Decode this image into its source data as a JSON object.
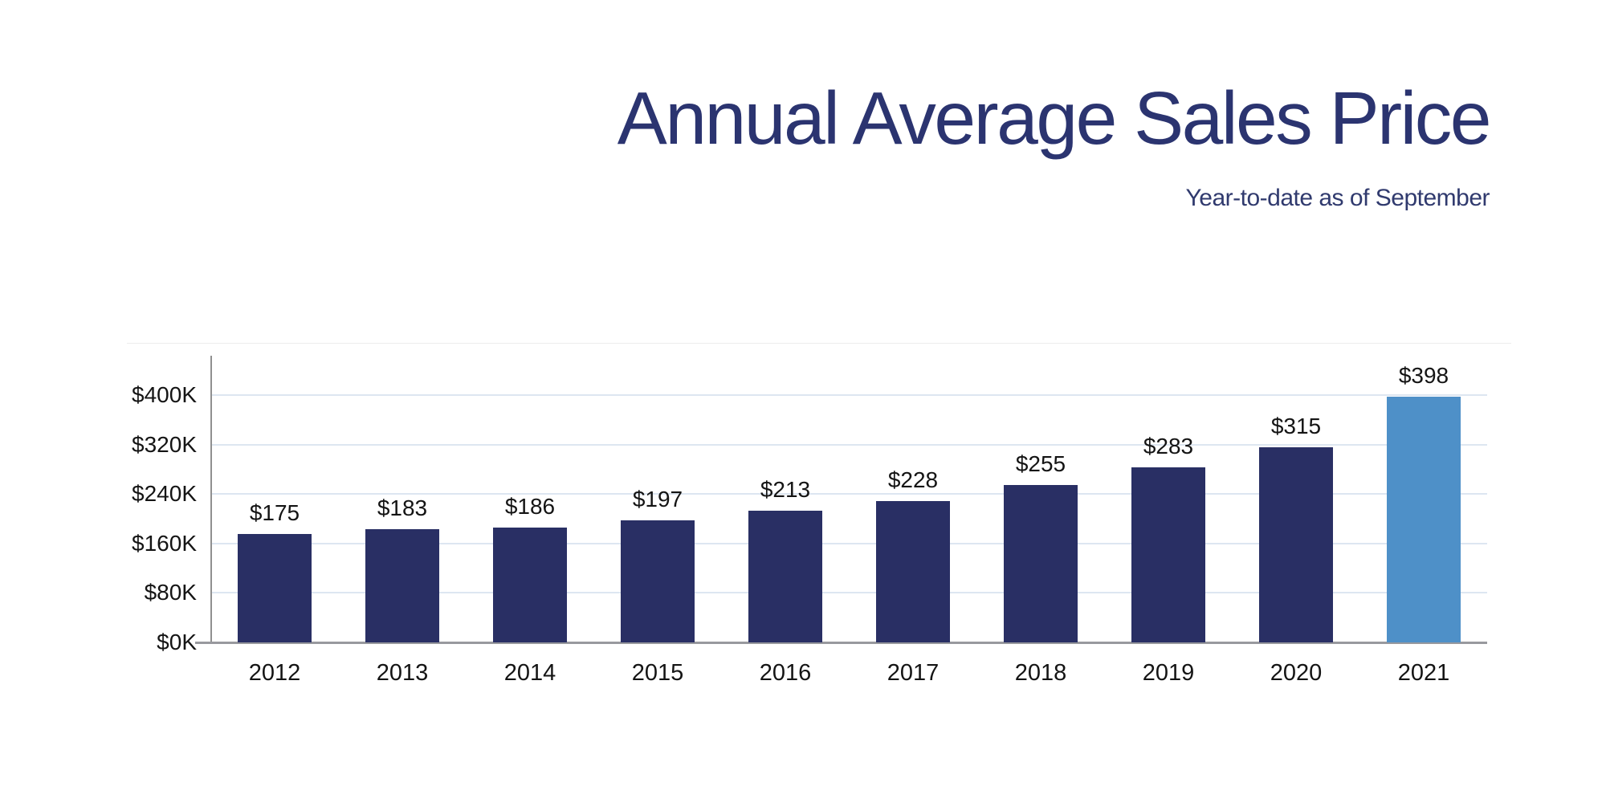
{
  "header": {
    "title": "Annual Average Sales Price",
    "subtitle": "Year-to-date as of September"
  },
  "chart_data": {
    "type": "bar",
    "title": "Annual Average Sales Price",
    "subtitle": "Year-to-date as of September",
    "categories": [
      "2012",
      "2013",
      "2014",
      "2015",
      "2016",
      "2017",
      "2018",
      "2019",
      "2020",
      "2021"
    ],
    "values": [
      175,
      183,
      186,
      197,
      213,
      228,
      255,
      283,
      315,
      398
    ],
    "value_labels": [
      "$175",
      "$183",
      "$186",
      "$197",
      "$213",
      "$228",
      "$255",
      "$283",
      "$315",
      "$398"
    ],
    "unit": "thousands of dollars",
    "y_ticks": [
      0,
      80,
      160,
      240,
      320,
      400
    ],
    "y_tick_labels": [
      "$0K",
      "$80K",
      "$160K",
      "$240K",
      "$320K",
      "$400K"
    ],
    "ylim": [
      0,
      460
    ],
    "grid": true,
    "legend": false,
    "highlight_index": 9,
    "colors": {
      "bar": "#292f64",
      "bar_highlight": "#4e90c8",
      "title": "#2b3470",
      "gridline": "#dde6f1",
      "axis": "#98999e",
      "label": "#141414"
    }
  }
}
